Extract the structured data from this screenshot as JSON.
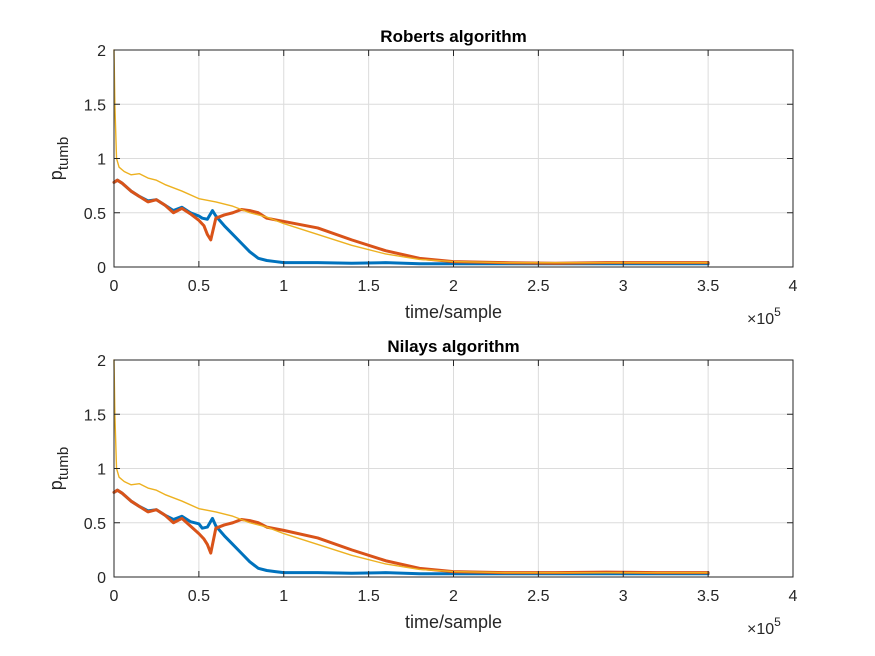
{
  "colors": {
    "s1": "#0072BD",
    "s2": "#D95319",
    "s3": "#EDB120"
  },
  "chart_data": [
    {
      "type": "line",
      "title": "Roberts algorithm",
      "xlabel": "time/sample",
      "ylabel_base": "p",
      "ylabel_sub": "tumb",
      "xlim": [
        0,
        400000
      ],
      "ylim": [
        0,
        2
      ],
      "xticks": [
        0,
        0.5,
        1,
        1.5,
        2,
        2.5,
        3,
        3.5,
        4
      ],
      "xtick_labels": [
        "0",
        "0.5",
        "1",
        "1.5",
        "2",
        "2.5",
        "3",
        "3.5",
        "4"
      ],
      "yticks": [
        0,
        0.5,
        1,
        1.5,
        2
      ],
      "ytick_labels": [
        "0",
        "0.5",
        "1",
        "1.5",
        "2"
      ],
      "xexponent_base": "×10",
      "xexponent_power": "5",
      "grid": true,
      "series": [
        {
          "x": [
            0,
            2000,
            5000,
            10000,
            15000,
            20000,
            25000,
            30000,
            35000,
            40000,
            45000,
            50000,
            52000,
            55000,
            58000,
            60000,
            65000,
            70000,
            75000,
            80000,
            85000,
            90000,
            95000,
            100000,
            120000,
            140000,
            160000,
            180000,
            200000,
            230000,
            260000,
            290000,
            320000,
            350000
          ],
          "y": [
            0.78,
            0.8,
            0.77,
            0.7,
            0.65,
            0.61,
            0.62,
            0.57,
            0.52,
            0.55,
            0.5,
            0.47,
            0.45,
            0.44,
            0.52,
            0.47,
            0.38,
            0.3,
            0.22,
            0.14,
            0.08,
            0.06,
            0.05,
            0.04,
            0.04,
            0.035,
            0.04,
            0.03,
            0.03,
            0.03,
            0.03,
            0.03,
            0.03,
            0.03
          ]
        },
        {
          "x": [
            0,
            2000,
            5000,
            10000,
            15000,
            20000,
            25000,
            30000,
            35000,
            40000,
            45000,
            50000,
            53000,
            55000,
            57000,
            60000,
            65000,
            70000,
            75000,
            80000,
            85000,
            90000,
            100000,
            120000,
            140000,
            160000,
            180000,
            200000,
            230000,
            260000,
            290000,
            320000,
            350000
          ],
          "y": [
            0.78,
            0.8,
            0.77,
            0.7,
            0.65,
            0.6,
            0.62,
            0.57,
            0.5,
            0.54,
            0.49,
            0.43,
            0.38,
            0.3,
            0.25,
            0.45,
            0.48,
            0.5,
            0.53,
            0.52,
            0.5,
            0.45,
            0.42,
            0.36,
            0.25,
            0.15,
            0.08,
            0.05,
            0.04,
            0.035,
            0.04,
            0.04,
            0.04
          ]
        },
        {
          "x": [
            0,
            500,
            1500,
            3000,
            6000,
            10000,
            15000,
            20000,
            25000,
            30000,
            40000,
            50000,
            60000,
            70000,
            80000,
            90000,
            100000,
            120000,
            140000,
            160000,
            180000,
            200000,
            230000,
            260000,
            290000,
            320000,
            350000
          ],
          "y": [
            2.0,
            1.5,
            1.0,
            0.92,
            0.88,
            0.85,
            0.86,
            0.82,
            0.8,
            0.76,
            0.7,
            0.63,
            0.6,
            0.56,
            0.5,
            0.46,
            0.4,
            0.3,
            0.2,
            0.12,
            0.07,
            0.05,
            0.04,
            0.04,
            0.04,
            0.04,
            0.04
          ]
        }
      ]
    },
    {
      "type": "line",
      "title": "Nilays algorithm",
      "xlabel": "time/sample",
      "ylabel_base": "p",
      "ylabel_sub": "tumb",
      "xlim": [
        0,
        400000
      ],
      "ylim": [
        0,
        2
      ],
      "xticks": [
        0,
        0.5,
        1,
        1.5,
        2,
        2.5,
        3,
        3.5,
        4
      ],
      "xtick_labels": [
        "0",
        "0.5",
        "1",
        "1.5",
        "2",
        "2.5",
        "3",
        "3.5",
        "4"
      ],
      "yticks": [
        0,
        0.5,
        1,
        1.5,
        2
      ],
      "ytick_labels": [
        "0",
        "0.5",
        "1",
        "1.5",
        "2"
      ],
      "xexponent_base": "×10",
      "xexponent_power": "5",
      "grid": true,
      "series": [
        {
          "x": [
            0,
            2000,
            5000,
            10000,
            15000,
            20000,
            25000,
            30000,
            35000,
            40000,
            45000,
            50000,
            52000,
            55000,
            58000,
            60000,
            65000,
            70000,
            75000,
            80000,
            85000,
            90000,
            95000,
            100000,
            120000,
            140000,
            160000,
            180000,
            200000,
            230000,
            260000,
            290000,
            320000,
            350000
          ],
          "y": [
            0.78,
            0.8,
            0.77,
            0.7,
            0.65,
            0.61,
            0.62,
            0.57,
            0.53,
            0.56,
            0.51,
            0.49,
            0.45,
            0.46,
            0.54,
            0.47,
            0.38,
            0.3,
            0.22,
            0.14,
            0.08,
            0.06,
            0.05,
            0.04,
            0.04,
            0.035,
            0.04,
            0.03,
            0.03,
            0.03,
            0.03,
            0.03,
            0.03,
            0.03
          ]
        },
        {
          "x": [
            0,
            2000,
            5000,
            10000,
            15000,
            20000,
            25000,
            30000,
            35000,
            40000,
            45000,
            50000,
            53000,
            55000,
            57000,
            60000,
            65000,
            70000,
            75000,
            80000,
            85000,
            90000,
            100000,
            120000,
            140000,
            160000,
            180000,
            200000,
            230000,
            260000,
            290000,
            320000,
            350000
          ],
          "y": [
            0.78,
            0.8,
            0.77,
            0.7,
            0.65,
            0.6,
            0.62,
            0.57,
            0.5,
            0.54,
            0.47,
            0.4,
            0.35,
            0.3,
            0.22,
            0.45,
            0.48,
            0.5,
            0.53,
            0.52,
            0.5,
            0.46,
            0.43,
            0.36,
            0.25,
            0.15,
            0.08,
            0.05,
            0.04,
            0.04,
            0.045,
            0.04,
            0.04
          ]
        },
        {
          "x": [
            0,
            500,
            1500,
            3000,
            6000,
            10000,
            15000,
            20000,
            25000,
            30000,
            40000,
            50000,
            60000,
            70000,
            80000,
            90000,
            100000,
            120000,
            140000,
            160000,
            180000,
            200000,
            230000,
            260000,
            290000,
            320000,
            350000
          ],
          "y": [
            2.0,
            1.5,
            1.0,
            0.92,
            0.88,
            0.85,
            0.86,
            0.82,
            0.8,
            0.76,
            0.7,
            0.63,
            0.6,
            0.56,
            0.5,
            0.46,
            0.4,
            0.3,
            0.2,
            0.12,
            0.07,
            0.05,
            0.04,
            0.04,
            0.04,
            0.04,
            0.04
          ]
        }
      ]
    }
  ]
}
